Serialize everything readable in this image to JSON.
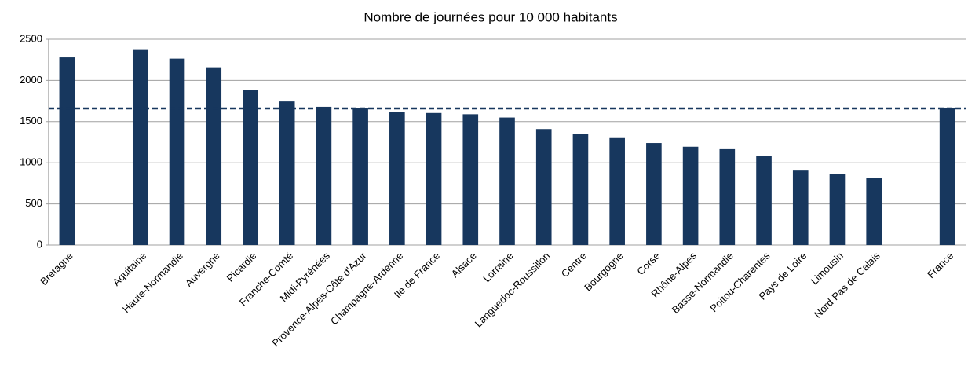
{
  "chart_data": {
    "type": "bar",
    "title": "Nombre de journées pour 10 000 habitants",
    "categories": [
      "Bretagne",
      null,
      "Aquitaine",
      "Haute-Normandie",
      "Auvergne",
      "Picardie",
      "Franche-Comté",
      "Midi-Pyrénées",
      "Provence-Alpes-Côte d'Azur",
      "Champagne-Ardenne",
      "Ile de France",
      "Alsace",
      "Lorraine",
      "Languedoc-Roussillon",
      "Centre",
      "Bourgogne",
      "Corse",
      "Rhône-Alpes",
      "Basse-Normandie",
      "Poitou-Charentes",
      "Pays de Loire",
      "Limousin",
      "Nord Pas de Calais",
      null,
      "France"
    ],
    "values": [
      2280,
      null,
      2370,
      2265,
      2160,
      1880,
      1745,
      1680,
      1665,
      1620,
      1605,
      1590,
      1550,
      1410,
      1350,
      1300,
      1240,
      1195,
      1165,
      1085,
      905,
      860,
      815,
      null,
      1670
    ],
    "color": "#17375e",
    "reference_line": 1660,
    "ylim": [
      0,
      2500
    ],
    "yticks": [
      0,
      500,
      1000,
      1500,
      2000,
      2500
    ],
    "grid": true
  }
}
